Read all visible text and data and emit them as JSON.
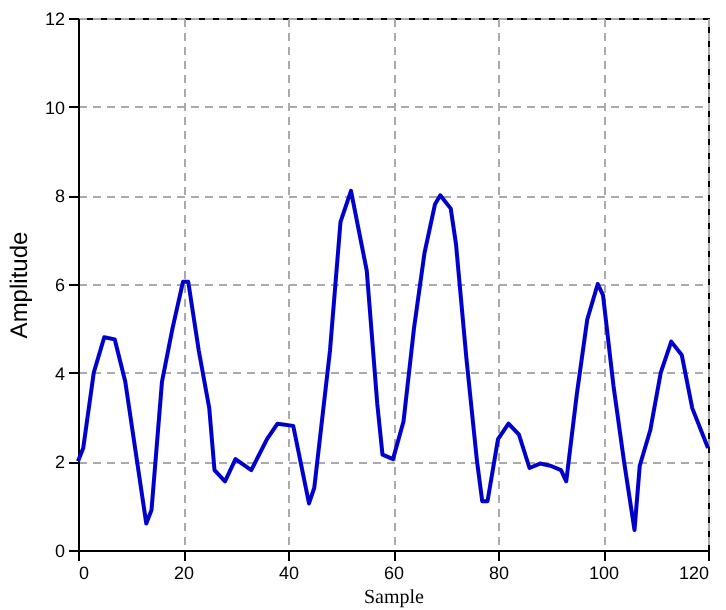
{
  "chart_data": {
    "type": "line",
    "xlabel": "Sample",
    "ylabel": "Amplitude",
    "xlim": [
      0,
      120
    ],
    "ylim": [
      0,
      12
    ],
    "xticks": [
      0,
      20,
      40,
      60,
      80,
      100,
      120
    ],
    "yticks": [
      0,
      2,
      4,
      6,
      8,
      10,
      12
    ],
    "grid": true,
    "line_style": "solid",
    "series": [
      {
        "color": "#0000cc",
        "x": [
          0,
          1,
          3,
          5,
          7,
          9,
          11,
          13,
          14,
          16,
          18,
          20,
          21,
          23,
          25,
          26,
          28,
          30,
          33,
          36,
          38,
          41,
          44,
          45,
          48,
          50,
          52,
          55,
          57,
          58,
          60,
          62,
          64,
          66,
          68,
          69,
          71,
          72,
          74,
          76,
          77,
          78,
          80,
          82,
          84,
          86,
          88,
          90,
          92,
          93,
          95,
          97,
          99,
          100,
          102,
          104,
          106,
          107,
          109,
          111,
          113,
          115,
          117,
          120
        ],
        "values": [
          2.0,
          2.3,
          4.0,
          4.8,
          4.75,
          3.8,
          2.2,
          0.6,
          0.9,
          3.8,
          5.0,
          6.05,
          6.05,
          4.5,
          3.2,
          1.8,
          1.55,
          2.05,
          1.8,
          2.5,
          2.85,
          2.8,
          1.05,
          1.4,
          4.5,
          7.4,
          8.1,
          6.3,
          3.3,
          2.15,
          2.05,
          2.9,
          5.0,
          6.7,
          7.8,
          8.0,
          7.7,
          6.9,
          4.3,
          2.0,
          1.1,
          1.1,
          2.5,
          2.85,
          2.6,
          1.85,
          1.95,
          1.9,
          1.8,
          1.55,
          3.5,
          5.2,
          6.0,
          5.75,
          3.7,
          2.0,
          0.45,
          1.9,
          2.7,
          4.0,
          4.7,
          4.4,
          3.2,
          2.3
        ]
      }
    ]
  }
}
